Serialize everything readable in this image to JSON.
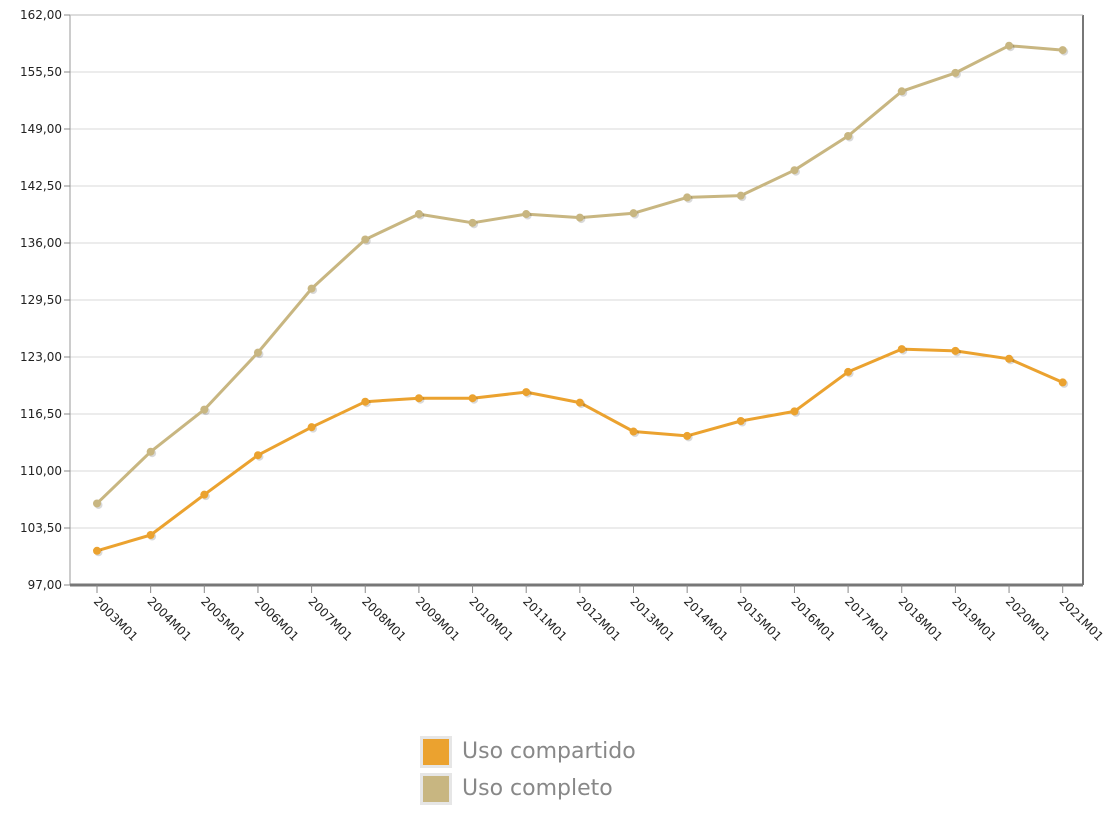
{
  "chart_data": {
    "type": "line",
    "categories": [
      "2003M01",
      "2004M01",
      "2005M01",
      "2006M01",
      "2007M01",
      "2008M01",
      "2009M01",
      "2010M01",
      "2011M01",
      "2012M01",
      "2013M01",
      "2014M01",
      "2015M01",
      "2016M01",
      "2017M01",
      "2018M01",
      "2019M01",
      "2020M01",
      "2021M01"
    ],
    "series": [
      {
        "name": "Uso compartido",
        "color": "#eba22f",
        "values": [
          100.9,
          102.7,
          107.3,
          111.8,
          115.0,
          117.9,
          118.3,
          118.3,
          119.0,
          117.8,
          114.5,
          114.0,
          115.7,
          116.8,
          121.3,
          123.9,
          123.7,
          122.8,
          120.1
        ]
      },
      {
        "name": "Uso completo",
        "color": "#c8b681",
        "values": [
          106.3,
          112.2,
          117.0,
          123.5,
          130.8,
          136.4,
          139.3,
          138.3,
          139.3,
          138.9,
          139.4,
          141.2,
          141.4,
          144.3,
          148.2,
          153.3,
          155.4,
          158.5,
          158.0
        ]
      }
    ],
    "yticks": [
      "97,00",
      "103,50",
      "110,00",
      "116,50",
      "123,00",
      "129,50",
      "136,00",
      "142,50",
      "149,00",
      "155,50",
      "162,00"
    ],
    "ylim": [
      97,
      162
    ],
    "grid": true,
    "legend_position": "bottom-center"
  }
}
